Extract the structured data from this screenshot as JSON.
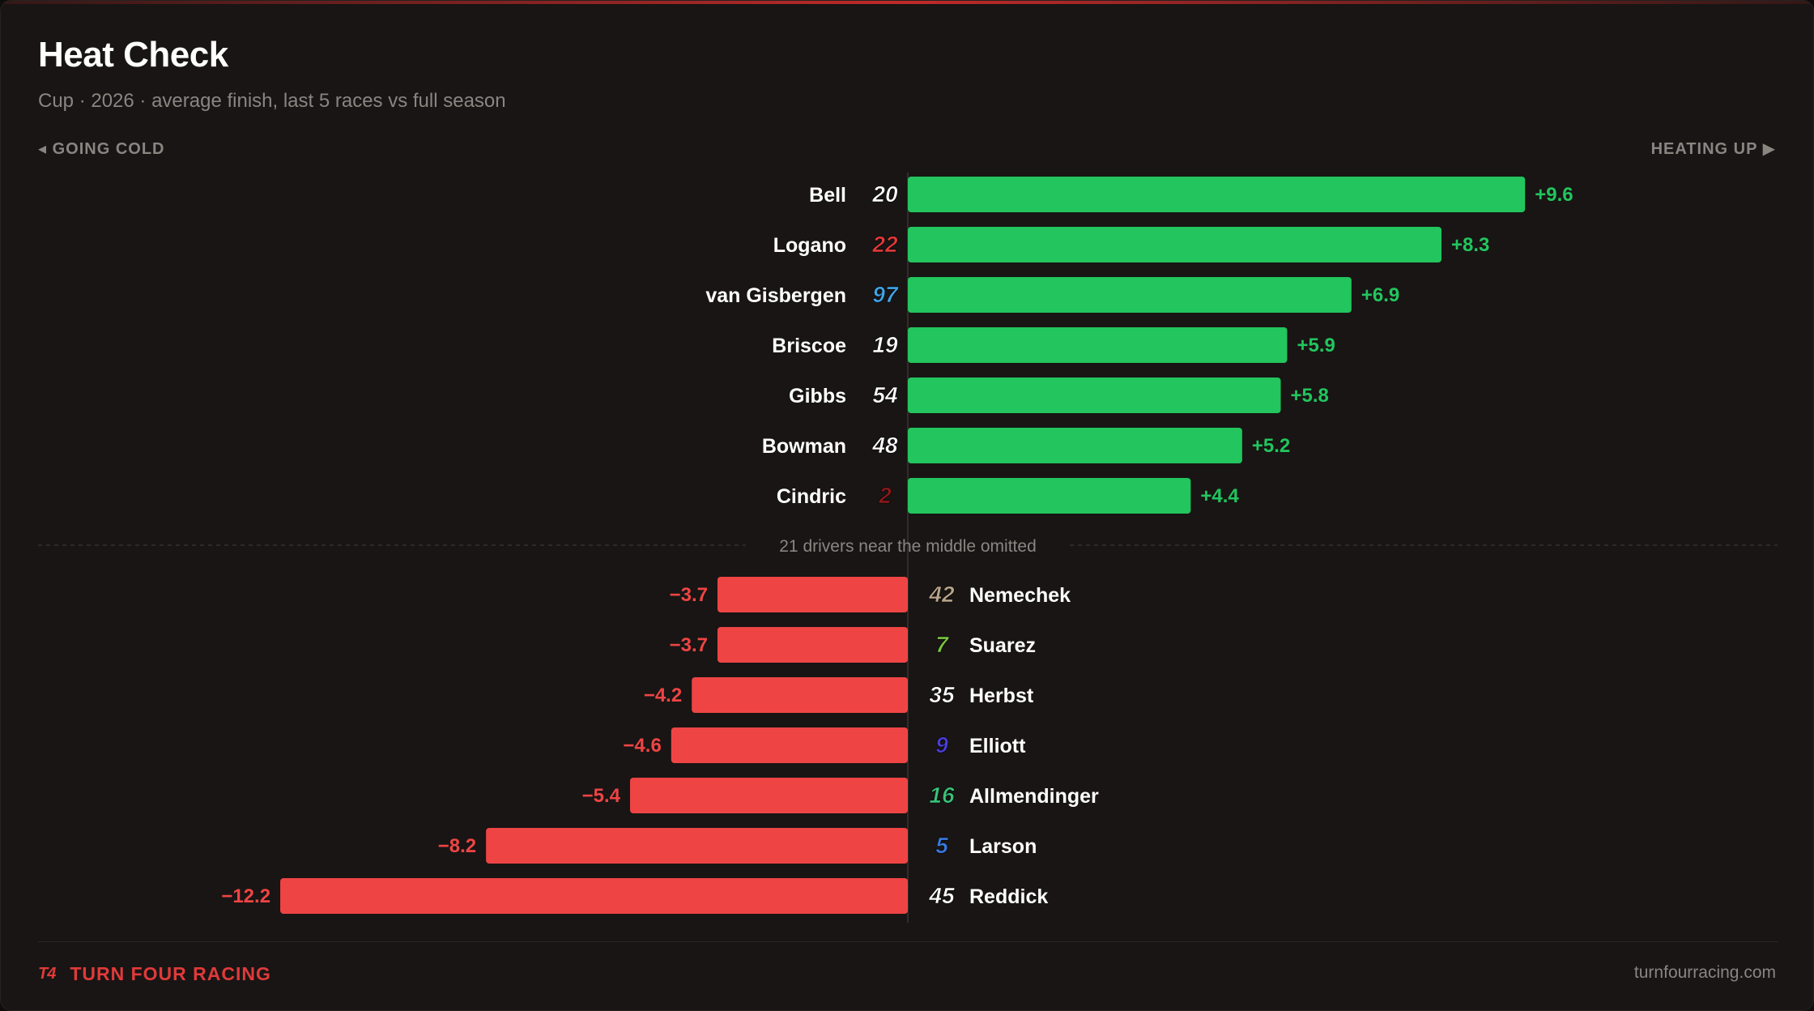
{
  "header": {
    "title": "Heat Check",
    "subtitle": "Cup · 2026 · average finish, last 5 races vs full season",
    "left_direction": "◂ GOING COLD",
    "right_direction": "HEATING UP ▶"
  },
  "footer": {
    "brand_logo": "T4",
    "brand_name": "TURN FOUR RACING",
    "site": "turnfourracing.com"
  },
  "colors": {
    "positive": "#22c55e",
    "negative": "#ef4444",
    "label": "#ffffff",
    "muted": "#8a8581"
  },
  "chart_data": {
    "type": "bar",
    "orientation": "horizontal-diverging",
    "value_label_format": "signed one decimal",
    "omitted_note": "21 drivers near the middle omitted",
    "heating_up": [
      {
        "driver": "Bell",
        "number": "20",
        "value": 9.6,
        "number_color": "#ffffff"
      },
      {
        "driver": "Logano",
        "number": "22",
        "value": 8.3,
        "number_color": "#e03a3a"
      },
      {
        "driver": "van Gisbergen",
        "number": "97",
        "value": 6.9,
        "number_color": "#3fa5e8"
      },
      {
        "driver": "Briscoe",
        "number": "19",
        "value": 5.9,
        "number_color": "#ffffff"
      },
      {
        "driver": "Gibbs",
        "number": "54",
        "value": 5.8,
        "number_color": "#ffffff"
      },
      {
        "driver": "Bowman",
        "number": "48",
        "value": 5.2,
        "number_color": "#ffffff"
      },
      {
        "driver": "Cindric",
        "number": "2",
        "value": 4.4,
        "number_color": "#8a1a1a"
      }
    ],
    "going_cold": [
      {
        "driver": "Nemechek",
        "number": "42",
        "value": -3.7,
        "number_color": "#b8a58a"
      },
      {
        "driver": "Suarez",
        "number": "7",
        "value": -3.7,
        "number_color": "#7cc440"
      },
      {
        "driver": "Herbst",
        "number": "35",
        "value": -4.2,
        "number_color": "#ffffff"
      },
      {
        "driver": "Elliott",
        "number": "9",
        "value": -4.6,
        "number_color": "#4a3fd8"
      },
      {
        "driver": "Allmendinger",
        "number": "16",
        "value": -5.4,
        "number_color": "#3ac27a"
      },
      {
        "driver": "Larson",
        "number": "5",
        "value": -8.2,
        "number_color": "#3a7ae0"
      },
      {
        "driver": "Reddick",
        "number": "45",
        "value": -12.2,
        "number_color": "#ffffff"
      }
    ]
  }
}
